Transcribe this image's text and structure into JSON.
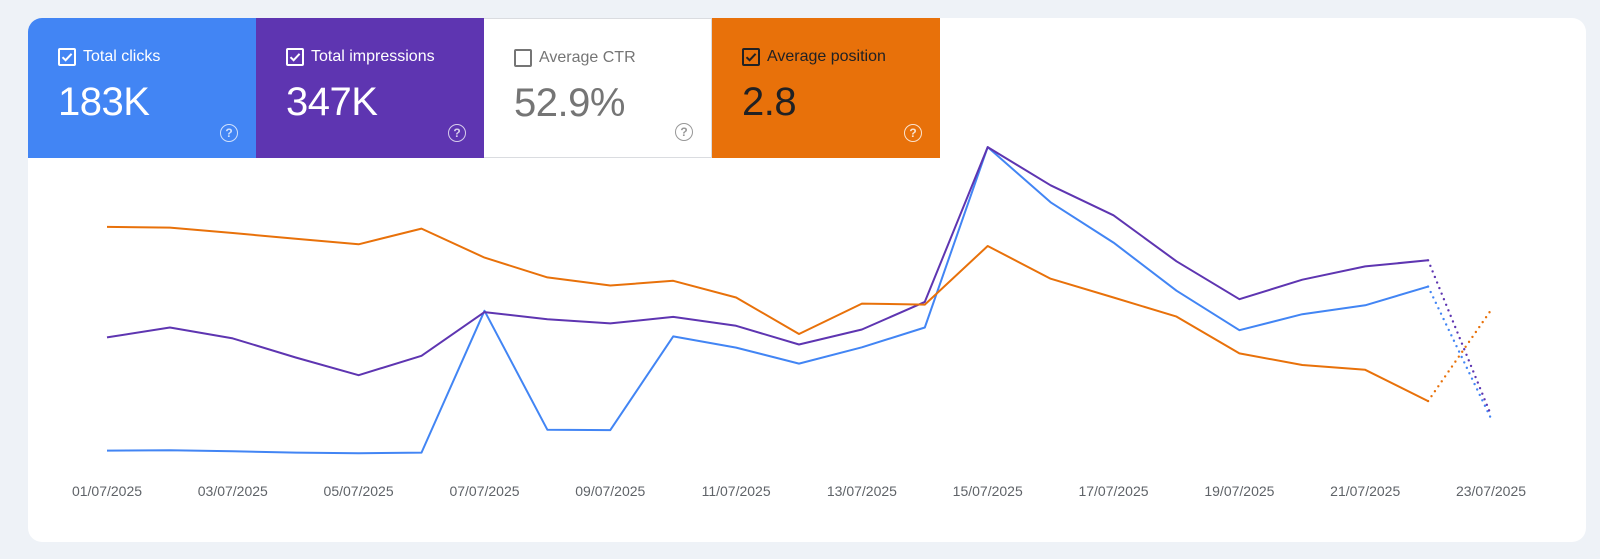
{
  "metrics": [
    {
      "label": "Total clicks",
      "value": "183K",
      "checked": true,
      "color": "#4285f4"
    },
    {
      "label": "Total impressions",
      "value": "347K",
      "checked": true,
      "color": "#5e35b1"
    },
    {
      "label": "Average CTR",
      "value": "52.9%",
      "checked": false,
      "color": "#ffffff"
    },
    {
      "label": "Average position",
      "value": "2.8",
      "checked": true,
      "color": "#e8710a"
    }
  ],
  "help_glyph": "?",
  "chart_data": {
    "type": "line",
    "x": [
      "01/07/2025",
      "02/07/2025",
      "03/07/2025",
      "04/07/2025",
      "05/07/2025",
      "06/07/2025",
      "07/07/2025",
      "08/07/2025",
      "09/07/2025",
      "10/07/2025",
      "11/07/2025",
      "12/07/2025",
      "13/07/2025",
      "14/07/2025",
      "15/07/2025",
      "16/07/2025",
      "17/07/2025",
      "18/07/2025",
      "19/07/2025",
      "20/07/2025",
      "21/07/2025",
      "22/07/2025",
      "23/07/2025"
    ],
    "tick_labels": [
      "01/07/2025",
      "03/07/2025",
      "05/07/2025",
      "07/07/2025",
      "09/07/2025",
      "11/07/2025",
      "13/07/2025",
      "15/07/2025",
      "17/07/2025",
      "19/07/2025",
      "21/07/2025",
      "23/07/2025"
    ],
    "series": [
      {
        "metric": "Total clicks",
        "color": "#4285f4",
        "values": [
          1.0,
          1.1,
          0.8,
          0.4,
          0.2,
          0.4,
          42.0,
          7.1,
          7.0,
          34.5,
          31.2,
          26.5,
          31.3,
          37.1,
          90.0,
          73.8,
          62.0,
          47.9,
          36.3,
          41.0,
          43.6,
          49.1,
          10.4
        ],
        "dotted_from": 21
      },
      {
        "metric": "Total impressions",
        "color": "#5e35b1",
        "values": [
          34.2,
          37.1,
          33.9,
          28.3,
          23.1,
          28.8,
          41.6,
          39.5,
          38.3,
          40.2,
          37.6,
          32.1,
          36.5,
          44.6,
          90.0,
          78.8,
          70.0,
          56.5,
          45.4,
          51.1,
          55.0,
          56.8,
          11.4
        ],
        "dotted_from": 21
      },
      {
        "metric": "Average position",
        "color": "#e8710a",
        "values": [
          66.6,
          66.4,
          64.8,
          63.1,
          61.5,
          66.1,
          57.6,
          51.8,
          49.4,
          50.8,
          45.9,
          35.2,
          44.1,
          43.8,
          61.0,
          51.4,
          45.9,
          40.3,
          29.5,
          26.1,
          24.7,
          15.5,
          42.2
        ],
        "dotted_from": 21
      }
    ],
    "ylim": [
      0,
      100
    ],
    "grid": false
  }
}
